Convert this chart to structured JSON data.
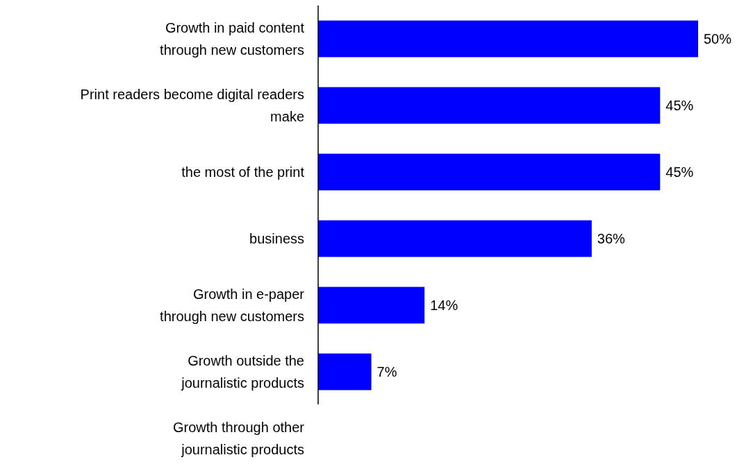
{
  "chart_data": {
    "type": "bar",
    "orientation": "horizontal",
    "categories": [
      "Growth in paid content\nthrough new customers",
      "Print readers become digital readers\nmake",
      "the most of the print",
      "business",
      "Growth in e-paper\nthrough new customers",
      "Growth outside the\njournalistic products",
      "Growth through other\njournalistic products"
    ],
    "values": [
      50,
      45,
      45,
      36,
      14,
      7,
      null
    ],
    "value_labels": [
      "50%",
      "45%",
      "45%",
      "36%",
      "14%",
      "7%",
      null
    ],
    "color": "#0000ff"
  }
}
